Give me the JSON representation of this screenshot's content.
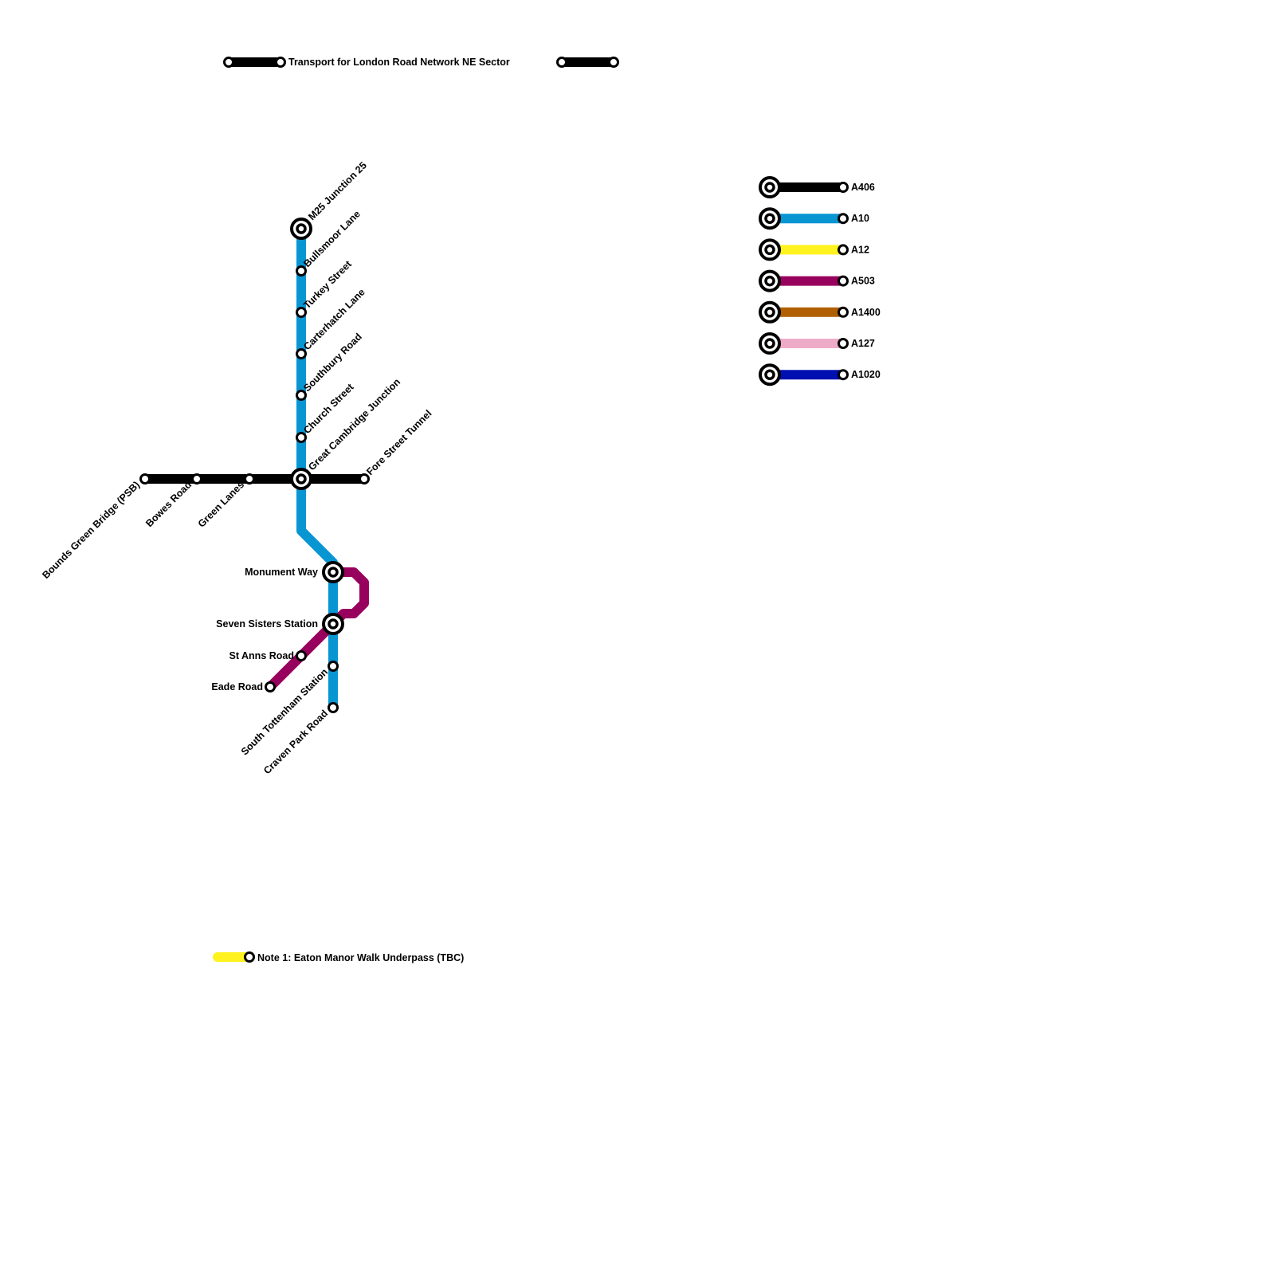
{
  "title": "Transport for London Road Network NE Sector",
  "note": "Note 1: Eaton Manor Walk Underpass (TBC)",
  "colors": {
    "A406": "#000000",
    "A10": "#0896d3",
    "A12": "#fff21e",
    "A503": "#98005d",
    "A1400": "#b06000",
    "A127": "#eeabc8",
    "A1020": "#0010b0"
  },
  "legend": [
    {
      "label": "A406",
      "color": "#000000"
    },
    {
      "label": "A10",
      "color": "#0896d3"
    },
    {
      "label": "A12",
      "color": "#fff21e"
    },
    {
      "label": "A503",
      "color": "#98005d"
    },
    {
      "label": "A1400",
      "color": "#b06000"
    },
    {
      "label": "A127",
      "color": "#eeabc8"
    },
    {
      "label": "A1020",
      "color": "#0010b0"
    }
  ],
  "stations": [
    {
      "name": "M25 Junction 25",
      "interchange": true
    },
    {
      "name": "Bullsmoor Lane",
      "interchange": false
    },
    {
      "name": "Turkey Street",
      "interchange": false
    },
    {
      "name": "Carterhatch Lane",
      "interchange": false
    },
    {
      "name": "Southbury Road",
      "interchange": false
    },
    {
      "name": "Church Street",
      "interchange": false
    },
    {
      "name": "Great Cambridge Junction",
      "interchange": true
    },
    {
      "name": "Bounds Green Bridge (PSB)",
      "interchange": false
    },
    {
      "name": "Bowes Road",
      "interchange": false
    },
    {
      "name": "Green Lanes",
      "interchange": false
    },
    {
      "name": "Fore Street Tunnel",
      "interchange": false
    },
    {
      "name": "Monument Way",
      "interchange": true
    },
    {
      "name": "Seven Sisters Station",
      "interchange": true
    },
    {
      "name": "South Tottenham Station",
      "interchange": false
    },
    {
      "name": "Craven Park Road",
      "interchange": false
    },
    {
      "name": "St Anns Road",
      "interchange": false
    },
    {
      "name": "Eade Road",
      "interchange": false
    }
  ]
}
